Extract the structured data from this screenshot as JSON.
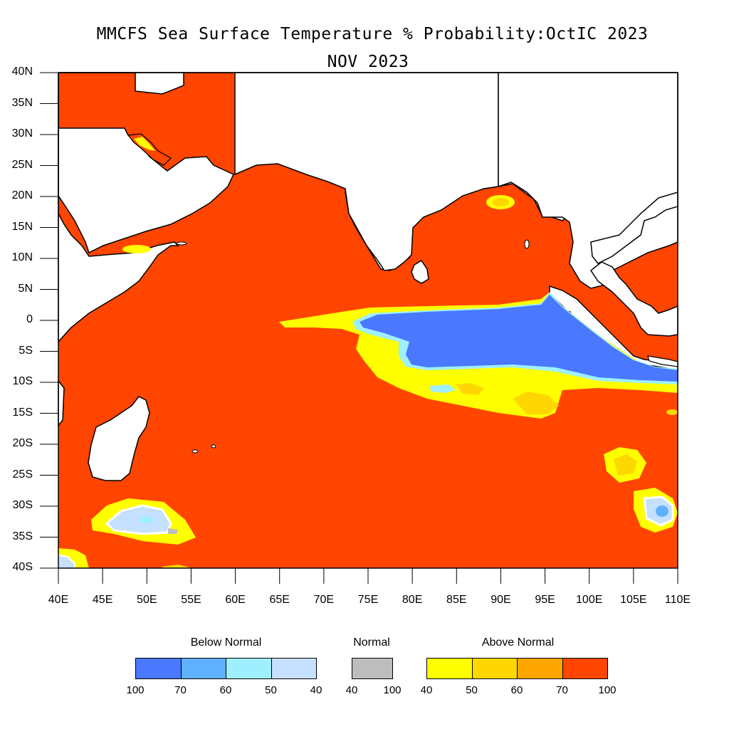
{
  "title": {
    "line1": "MMCFS Sea Surface Temperature % Probability:OctIC 2023",
    "line2": "NOV 2023"
  },
  "axes": {
    "y_ticks": [
      "40N",
      "35N",
      "30N",
      "25N",
      "20N",
      "15N",
      "10N",
      "5N",
      "0",
      "5S",
      "10S",
      "15S",
      "20S",
      "25S",
      "30S",
      "35S",
      "40S"
    ],
    "x_ticks": [
      "40E",
      "45E",
      "50E",
      "55E",
      "60E",
      "65E",
      "70E",
      "75E",
      "80E",
      "85E",
      "90E",
      "95E",
      "100E",
      "105E",
      "110E"
    ],
    "lon_range": [
      40,
      110
    ],
    "lat_range": [
      -40,
      40
    ]
  },
  "legend": {
    "below": {
      "title": "Below Normal",
      "colors": [
        "#4a78ff",
        "#5fb0ff",
        "#9ef0ff",
        "#c6e0ff"
      ],
      "ticks": [
        "100",
        "70",
        "60",
        "50",
        "40"
      ]
    },
    "normal": {
      "title": "Normal",
      "colors": [
        "#bdbdbd"
      ],
      "ticks": [
        "40",
        "100"
      ]
    },
    "above": {
      "title": "Above Normal",
      "colors": [
        "#ffff00",
        "#ffd700",
        "#ffa500",
        "#ff4500"
      ],
      "ticks": [
        "40",
        "50",
        "60",
        "70",
        "100"
      ]
    }
  },
  "colors": {
    "ocean_above": "#ff4500",
    "land": "#ffffff",
    "coast": "#000000"
  }
}
